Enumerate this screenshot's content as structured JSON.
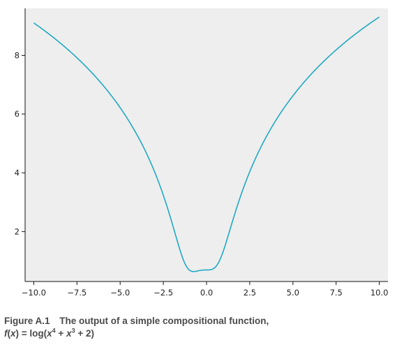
{
  "chart_data": {
    "type": "line",
    "title": "",
    "xlabel": "",
    "ylabel": "",
    "xlim": [
      -10.5,
      10.5
    ],
    "ylim": [
      0.3,
      9.6
    ],
    "x_ticks": [
      -10.0,
      -7.5,
      -5.0,
      -2.5,
      0.0,
      2.5,
      5.0,
      7.5,
      10.0
    ],
    "x_tick_labels": [
      "−10.0",
      "−7.5",
      "−5.0",
      "−2.5",
      "0.0",
      "2.5",
      "5.0",
      "7.5",
      "10.0"
    ],
    "y_ticks": [
      2,
      4,
      6,
      8
    ],
    "y_tick_labels": [
      "2",
      "4",
      "6",
      "8"
    ],
    "grid": false,
    "background_color": "#eeeeee",
    "series": [
      {
        "color": "#1fa9c4",
        "function": "log(x^4 + x^3 + 2)",
        "x_range": [
          -10,
          10
        ]
      }
    ]
  },
  "caption": {
    "label": "Figure A.1",
    "text": "The output of a simple compositional function,",
    "formula": {
      "f": "f",
      "x": "x",
      "eq": "= log(",
      "x4_base": "x",
      "x4_exp": "4",
      "plus1": " + ",
      "x3_base": "x",
      "x3_exp": "3",
      "tail": " + 2)"
    }
  }
}
